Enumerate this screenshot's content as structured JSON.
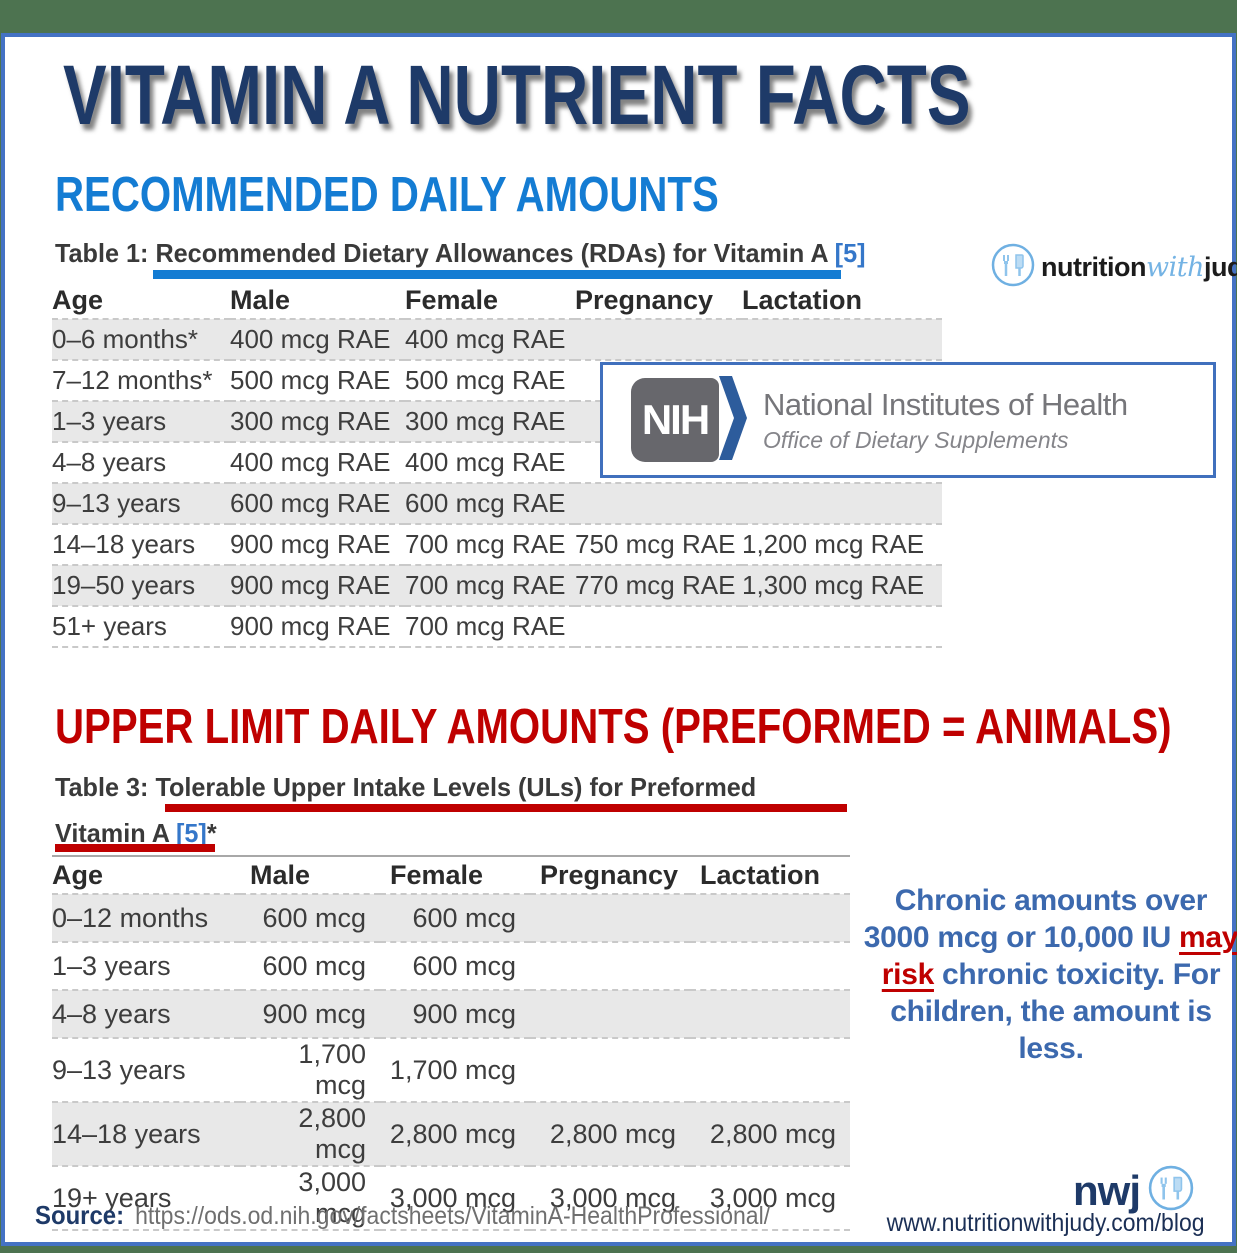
{
  "header": {
    "title": "VITAMIN A NUTRIENT FACTS"
  },
  "brand_top": {
    "part1": "nutrition",
    "part2": "with",
    "part3": "judy"
  },
  "section1": {
    "heading": "RECOMMENDED DAILY AMOUNTS",
    "table_title_prefix": "Table 1: ",
    "table_title_main": "Recommended Dietary Allowances (RDAs) for Vitamin A ",
    "table_title_ref": "[5]"
  },
  "table1": {
    "headers": [
      "Age",
      "Male",
      "Female",
      "Pregnancy",
      "Lactation"
    ],
    "shaded": [
      0,
      2,
      4,
      6
    ],
    "rows": [
      [
        "0–6 months*",
        "400 mcg RAE",
        "400 mcg RAE",
        "",
        ""
      ],
      [
        "7–12 months*",
        "500 mcg RAE",
        "500 mcg RAE",
        "",
        ""
      ],
      [
        "1–3 years",
        "300 mcg RAE",
        "300 mcg RAE",
        "",
        ""
      ],
      [
        "4–8 years",
        "400 mcg RAE",
        "400 mcg RAE",
        "",
        ""
      ],
      [
        "9–13 years",
        "600 mcg RAE",
        "600 mcg RAE",
        "",
        ""
      ],
      [
        "14–18 years",
        "900 mcg RAE",
        "700 mcg RAE",
        "750 mcg RAE",
        "1,200 mcg RAE"
      ],
      [
        "19–50 years",
        "900 mcg RAE",
        "700 mcg RAE",
        "770 mcg RAE",
        "1,300 mcg RAE"
      ],
      [
        "51+ years",
        "900 mcg RAE",
        "700 mcg RAE",
        "",
        ""
      ]
    ]
  },
  "nih": {
    "acronym": "NIH",
    "name": "National Institutes of Health",
    "office": "Office of Dietary Supplements"
  },
  "section2": {
    "heading": "UPPER LIMIT DAILY AMOUNTS (PREFORMED = ANIMALS)",
    "table_title_prefix": "Table 3: ",
    "table_title_main": "Tolerable Upper Intake Levels (ULs) for Preformed",
    "table_title_line2": "Vitamin A ",
    "table_title_ref": "[5]",
    "table_title_suffix": "*"
  },
  "table3": {
    "headers": [
      "Age",
      "Male",
      "Female",
      "Pregnancy",
      "Lactation"
    ],
    "shaded": [
      0,
      2,
      4
    ],
    "rows": [
      [
        "0–12 months",
        "600 mcg",
        "600 mcg",
        "",
        ""
      ],
      [
        "1–3 years",
        "600 mcg",
        "600 mcg",
        "",
        ""
      ],
      [
        "4–8 years",
        "900 mcg",
        "900 mcg",
        "",
        ""
      ],
      [
        "9–13 years",
        "1,700 mcg",
        "1,700 mcg",
        "",
        ""
      ],
      [
        "14–18 years",
        "2,800 mcg",
        "2,800 mcg",
        "2,800 mcg",
        "2,800 mcg"
      ],
      [
        "19+ years",
        "3,000 mcg",
        "3,000 mcg",
        "3,000 mcg",
        "3,000 mcg"
      ]
    ]
  },
  "note": {
    "before": "Chronic amounts over 3000 mcg or 10,000 IU ",
    "highlight": "may risk",
    "after": " chronic toxicity. For children, the amount is less."
  },
  "footer": {
    "source_label": "Source:",
    "source_url": "https://ods.od.nih.gov/factsheets/VitaminA-HealthProfessional/",
    "brand": "nwj",
    "website": "www.nutritionwithjudy.com/blog"
  },
  "colors": {
    "accent_blue": "#147cd3",
    "navy_title": "#1e3a68",
    "red_accent": "#bf0000",
    "note_blue": "#3c69ae",
    "background_green": "#4d7350",
    "card_border_blue": "#4472c4",
    "shaded_row": "#e8e8e8"
  }
}
